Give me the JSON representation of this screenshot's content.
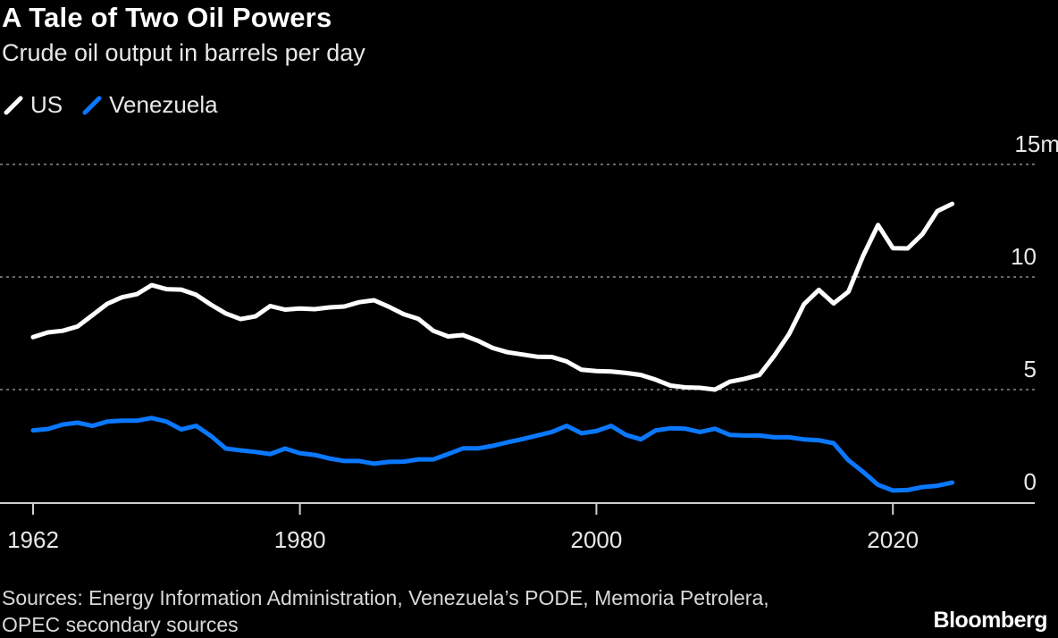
{
  "chart_data": {
    "type": "line",
    "title": "A Tale of Two Oil Powers",
    "subtitle": "Crude oil output in barrels per day",
    "xlabel": "",
    "ylabel": "",
    "xlim": [
      1962,
      2027
    ],
    "ylim": [
      0,
      15
    ],
    "x_ticks": [
      1962,
      1980,
      2000,
      2020
    ],
    "x_tick_labels": [
      "1962",
      "1980",
      "2000",
      "2020"
    ],
    "y_ticks": [
      0,
      5,
      10,
      15
    ],
    "y_tick_labels": [
      "0",
      "5",
      "10",
      "15m"
    ],
    "grid": "horizontal dotted",
    "legend_placement": "top-left",
    "x": [
      1962,
      1963,
      1964,
      1965,
      1966,
      1967,
      1968,
      1969,
      1970,
      1971,
      1972,
      1973,
      1974,
      1975,
      1976,
      1977,
      1978,
      1979,
      1980,
      1981,
      1982,
      1983,
      1984,
      1985,
      1986,
      1987,
      1988,
      1989,
      1990,
      1991,
      1992,
      1993,
      1994,
      1995,
      1996,
      1997,
      1998,
      1999,
      2000,
      2001,
      2002,
      2003,
      2004,
      2005,
      2006,
      2007,
      2008,
      2009,
      2010,
      2011,
      2012,
      2013,
      2014,
      2015,
      2016,
      2017,
      2018,
      2019,
      2020,
      2021,
      2022,
      2023,
      2024
    ],
    "series": [
      {
        "name": "US",
        "color": "#ffffff",
        "values": [
          7.33,
          7.54,
          7.61,
          7.8,
          8.3,
          8.81,
          9.1,
          9.24,
          9.64,
          9.46,
          9.44,
          9.21,
          8.77,
          8.38,
          8.13,
          8.25,
          8.71,
          8.55,
          8.6,
          8.57,
          8.65,
          8.69,
          8.88,
          8.97,
          8.68,
          8.35,
          8.14,
          7.61,
          7.36,
          7.42,
          7.17,
          6.85,
          6.66,
          6.56,
          6.46,
          6.45,
          6.25,
          5.88,
          5.82,
          5.8,
          5.74,
          5.65,
          5.44,
          5.18,
          5.1,
          5.08,
          5.0,
          5.35,
          5.48,
          5.65,
          6.5,
          7.47,
          8.79,
          9.43,
          8.83,
          9.35,
          10.95,
          12.31,
          11.28,
          11.27,
          11.91,
          12.93,
          13.25
        ]
      },
      {
        "name": "Venezuela",
        "color": "#0a78ff",
        "values": [
          3.19,
          3.25,
          3.45,
          3.53,
          3.39,
          3.58,
          3.62,
          3.62,
          3.74,
          3.58,
          3.23,
          3.39,
          2.94,
          2.38,
          2.3,
          2.23,
          2.14,
          2.38,
          2.18,
          2.1,
          1.94,
          1.83,
          1.83,
          1.71,
          1.79,
          1.8,
          1.9,
          1.9,
          2.14,
          2.39,
          2.39,
          2.5,
          2.66,
          2.8,
          2.96,
          3.12,
          3.39,
          3.06,
          3.16,
          3.39,
          2.99,
          2.79,
          3.19,
          3.28,
          3.26,
          3.12,
          3.26,
          2.99,
          2.96,
          2.96,
          2.88,
          2.88,
          2.79,
          2.75,
          2.62,
          1.86,
          1.34,
          0.77,
          0.52,
          0.54,
          0.67,
          0.73,
          0.87
        ]
      }
    ]
  },
  "footer": {
    "source": "Sources: Energy Information Administration, Venezuela’s PODE, Memoria Petrolera, OPEC secondary sources",
    "logo": "Bloomberg"
  }
}
